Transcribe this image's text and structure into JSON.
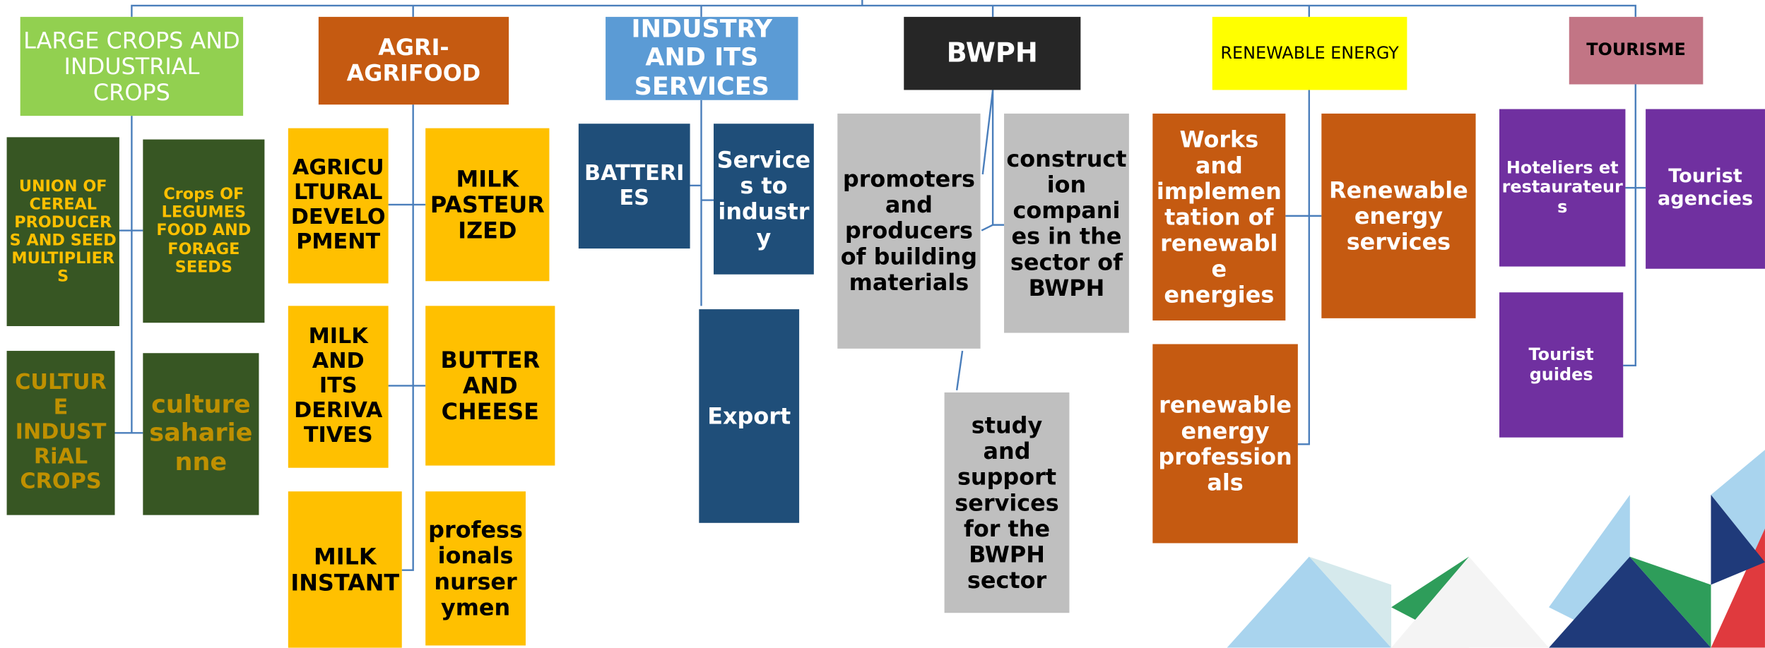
{
  "columns": [
    {
      "header": "LARGE CROPS AND INDUSTRIAL CROPS",
      "items": [
        "UNION OF CEREAL PRODUCERS AND SEED MULTIPLIERS",
        "Crops OF LEGUMES FOOD AND FORAGE SEEDS",
        "CULTURE INDUSTRiAL CROPS",
        "culture saharienne"
      ]
    },
    {
      "header": "AGRI-AGRIFOOD",
      "items": [
        "AGRICULTURAL DEVELOPMENT",
        "MILK PASTEURIZED",
        "MILK AND ITS DERIVATIVES",
        "BUTTER AND CHEESE",
        "MILK INSTANT",
        "professionals nurserymen"
      ]
    },
    {
      "header": "INDUSTRY AND ITS SERVICES",
      "items": [
        "BATTERIES",
        "Services to industry",
        "Export"
      ]
    },
    {
      "header": "BWPH",
      "items": [
        "promoters and producers of building materials",
        "construction companies in the sector of BWPH",
        "study and support services for the BWPH sector"
      ]
    },
    {
      "header": "RENEWABLE ENERGY",
      "items": [
        "Works and implementation of renewable energies",
        "Renewable energy services",
        "renewable energy professionals"
      ]
    },
    {
      "header": "TOURISME",
      "items": [
        "Hoteliers et restaurateurs",
        "Tourist agencies",
        "Tourist guides"
      ]
    }
  ]
}
